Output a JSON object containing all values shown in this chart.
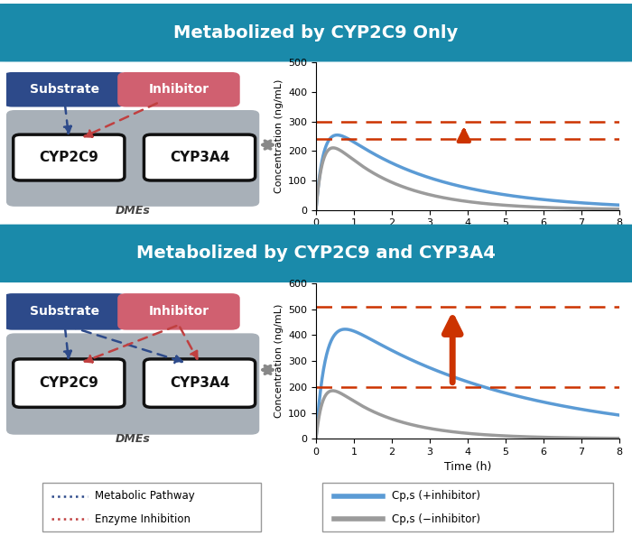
{
  "title1": "Metabolized by CYP2C9 Only",
  "title2": "Metabolized by CYP2C9 and CYP3A4",
  "title_bg": "#1a8aaa",
  "title_text_color": "#ffffff",
  "substrate_color": "#2d4a8a",
  "inhibitor_color": "#d06070",
  "dme_box_color": "#a8b0b8",
  "bg_color": "#ffffff",
  "arrow_blue": "#2d4a8a",
  "arrow_red": "#c04040",
  "plot1_dashed_upper": 300,
  "plot1_dashed_lower": 240,
  "plot2_dashed_upper": 510,
  "plot2_dashed_lower": 200,
  "line_blue": "#5b9bd5",
  "line_gray": "#9b9b9b",
  "dashed_color": "#cc3300",
  "xlabel": "Time (h)",
  "ylabel": "Concentration (ng/mL)",
  "legend_blue": "Cp,s (+inhibitor)",
  "legend_gray": "Cp,s (−inhibitor)",
  "legend_metabolic": "Metabolic Pathway",
  "legend_enzyme": "Enzyme Inhibition"
}
